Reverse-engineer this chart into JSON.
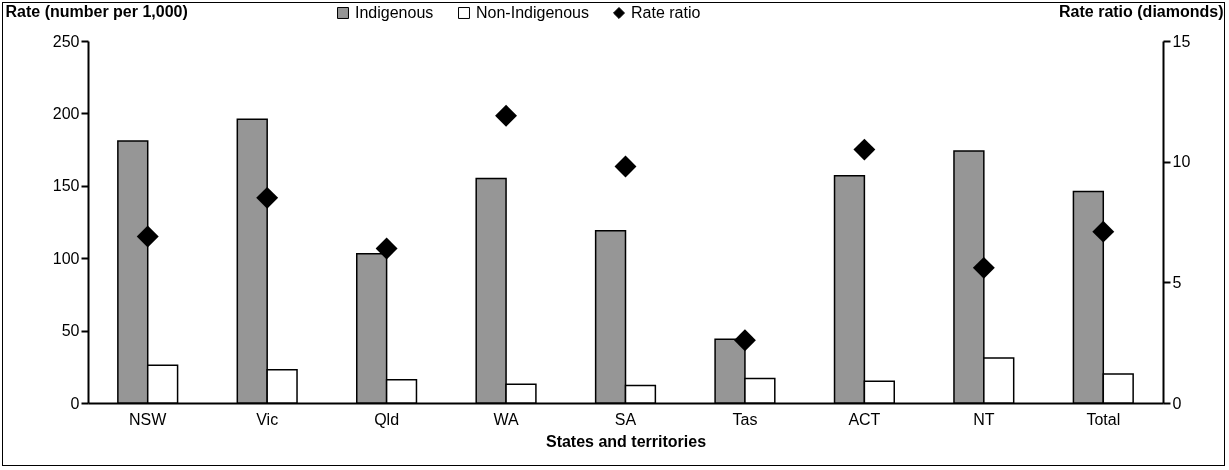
{
  "chart_data": {
    "type": "bar",
    "xlabel": "States and territories",
    "ylabel": "Rate (number per 1,000)",
    "y2label": "Rate ratio (diamonds)",
    "categories": [
      "NSW",
      "Vic",
      "Qld",
      "WA",
      "SA",
      "Tas",
      "ACT",
      "NT",
      "Total"
    ],
    "series": [
      {
        "name": "Indigenous",
        "color": "#969696",
        "values": [
          181,
          196,
          103,
          155,
          119,
          44,
          157,
          174,
          146
        ]
      },
      {
        "name": "Non-Indigenous",
        "color": "#ffffff",
        "values": [
          26,
          23,
          16,
          13,
          12,
          17,
          15,
          31,
          20
        ]
      },
      {
        "name": "Rate ratio",
        "type": "scatter",
        "axis": "y2",
        "marker": "diamond",
        "color": "#000000",
        "values": [
          6.9,
          8.5,
          6.4,
          11.9,
          9.8,
          2.6,
          10.5,
          5.6,
          7.1
        ]
      }
    ],
    "ylim": [
      0,
      250
    ],
    "yticks": [
      0,
      50,
      100,
      150,
      200,
      250
    ],
    "y2lim": [
      0,
      15
    ],
    "y2ticks": [
      0,
      5,
      10,
      15
    ],
    "grid": false,
    "legend": "top"
  }
}
